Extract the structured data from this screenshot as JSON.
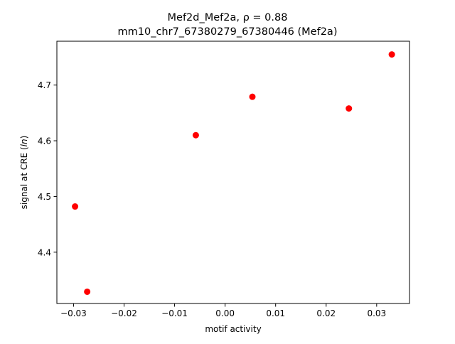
{
  "chart_data": {
    "type": "scatter",
    "title_line1": "Mef2d_Mef2a, ρ = 0.88",
    "title_line2": "mm10_chr7_67380279_67380446 (Mef2a)",
    "xlabel": "motif activity",
    "ylabel_prefix": "signal at CRE (",
    "ylabel_italic": "ln",
    "ylabel_suffix": ")",
    "xlim": [
      -0.0333,
      0.0365
    ],
    "ylim": [
      4.3079,
      4.7787
    ],
    "x_ticks": [
      -0.03,
      -0.02,
      -0.01,
      0.0,
      0.01,
      0.02,
      0.03
    ],
    "x_tick_labels": [
      "−0.03",
      "−0.02",
      "−0.01",
      "0.00",
      "0.01",
      "0.02",
      "0.03"
    ],
    "y_ticks": [
      4.4,
      4.5,
      4.6,
      4.7
    ],
    "y_tick_labels": [
      "4.4",
      "4.5",
      "4.6",
      "4.7"
    ],
    "grid": false,
    "marker_color": "#ff0000",
    "points": [
      {
        "x": -0.0297,
        "y": 4.482
      },
      {
        "x": -0.0273,
        "y": 4.329
      },
      {
        "x": -0.0058,
        "y": 4.61
      },
      {
        "x": 0.0054,
        "y": 4.679
      },
      {
        "x": 0.0245,
        "y": 4.658
      },
      {
        "x": 0.033,
        "y": 4.755
      }
    ]
  }
}
